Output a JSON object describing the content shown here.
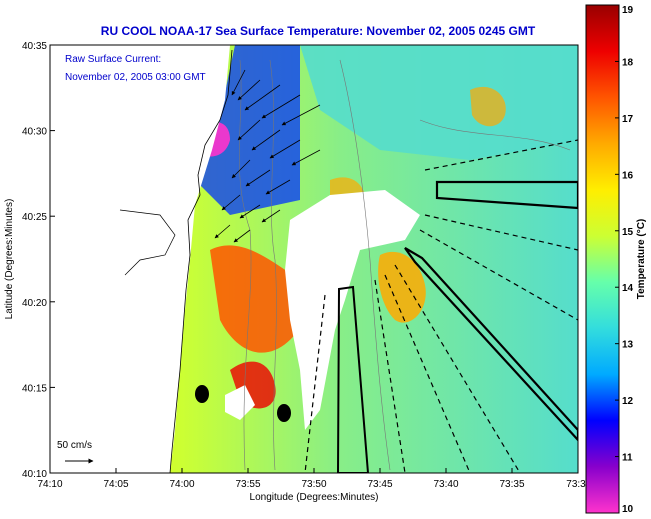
{
  "title": "RU COOL  NOAA-17  Sea Surface Temperature:  November 02, 2005 0245 GMT",
  "annotation_line1": "Raw Surface Current:",
  "annotation_line2": "November 02, 2005 03:00 GMT",
  "scale_label": "50 cm/s",
  "xlabel": "Longitude (Degrees:Minutes)",
  "ylabel": "Latitude (Degrees:Minutes)",
  "colorbar_label": "Temperature (°C)",
  "x_ticks": [
    "74:10",
    "74:05",
    "74:00",
    "73:55",
    "73:50",
    "73:45",
    "73:40",
    "73:35",
    "73:3"
  ],
  "y_ticks": [
    "40:35",
    "40:30",
    "40:25",
    "40:20",
    "40:15",
    "40:10"
  ],
  "colorbar_ticks": [
    "19",
    "18",
    "17",
    "16",
    "15",
    "14",
    "13",
    "12",
    "11",
    "10"
  ],
  "colorbar_stops": [
    "#ff33cc",
    "#8800cc",
    "#0000ff",
    "#00aaff",
    "#33dddd",
    "#66ffaa",
    "#ccff33",
    "#ffee00",
    "#ffaa00",
    "#ff5500",
    "#ee0000",
    "#990000"
  ],
  "land_color": "#ffffff",
  "colors": {
    "title": "#0000cc",
    "annotation": "#0000cc"
  }
}
